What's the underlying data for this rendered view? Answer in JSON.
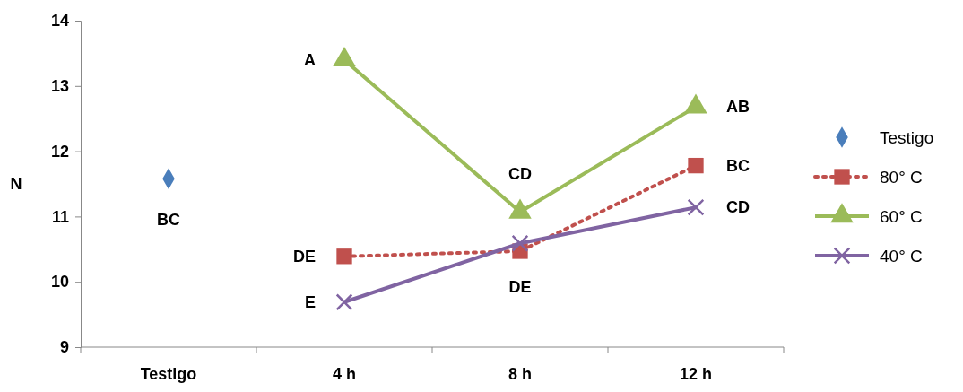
{
  "chart_data": {
    "type": "line",
    "ylabel": "N",
    "categories": [
      "Testigo",
      "4 h",
      "8 h",
      "12 h"
    ],
    "ylim": [
      9,
      14
    ],
    "yticks": [
      9,
      10,
      11,
      12,
      13,
      14
    ],
    "grid": false,
    "legend": "right",
    "series": [
      {
        "name": "Testigo",
        "type": "scatter",
        "color": "#4a7ebb",
        "marker": "diamond",
        "values": [
          11.58,
          null,
          null,
          null
        ]
      },
      {
        "name": "80° C",
        "color": "#c0504d",
        "marker": "square",
        "line_style": "dotted",
        "values": [
          null,
          10.39,
          10.47,
          11.78
        ]
      },
      {
        "name": "60° C",
        "color": "#9bbb59",
        "marker": "triangle",
        "line_style": "solid",
        "values": [
          null,
          13.4,
          11.07,
          12.68
        ]
      },
      {
        "name": "40° C",
        "color": "#8064a2",
        "marker": "cross",
        "line_style": "solid",
        "values": [
          null,
          9.69,
          10.59,
          11.14
        ]
      }
    ],
    "annotations": [
      {
        "text": "BC",
        "x": "Testigo",
        "y": 11.58
      },
      {
        "text": "A",
        "x": "4 h",
        "y": 13.4
      },
      {
        "text": "DE",
        "x": "4 h",
        "y": 10.39
      },
      {
        "text": "E",
        "x": "4 h",
        "y": 9.69
      },
      {
        "text": "CD",
        "x": "8 h",
        "y": 11.07
      },
      {
        "text": "DE",
        "x": "8 h",
        "y": 10.47
      },
      {
        "text": "AB",
        "x": "12 h",
        "y": 12.68
      },
      {
        "text": "BC",
        "x": "12 h",
        "y": 11.78
      },
      {
        "text": "CD",
        "x": "12 h",
        "y": 11.14
      }
    ]
  }
}
